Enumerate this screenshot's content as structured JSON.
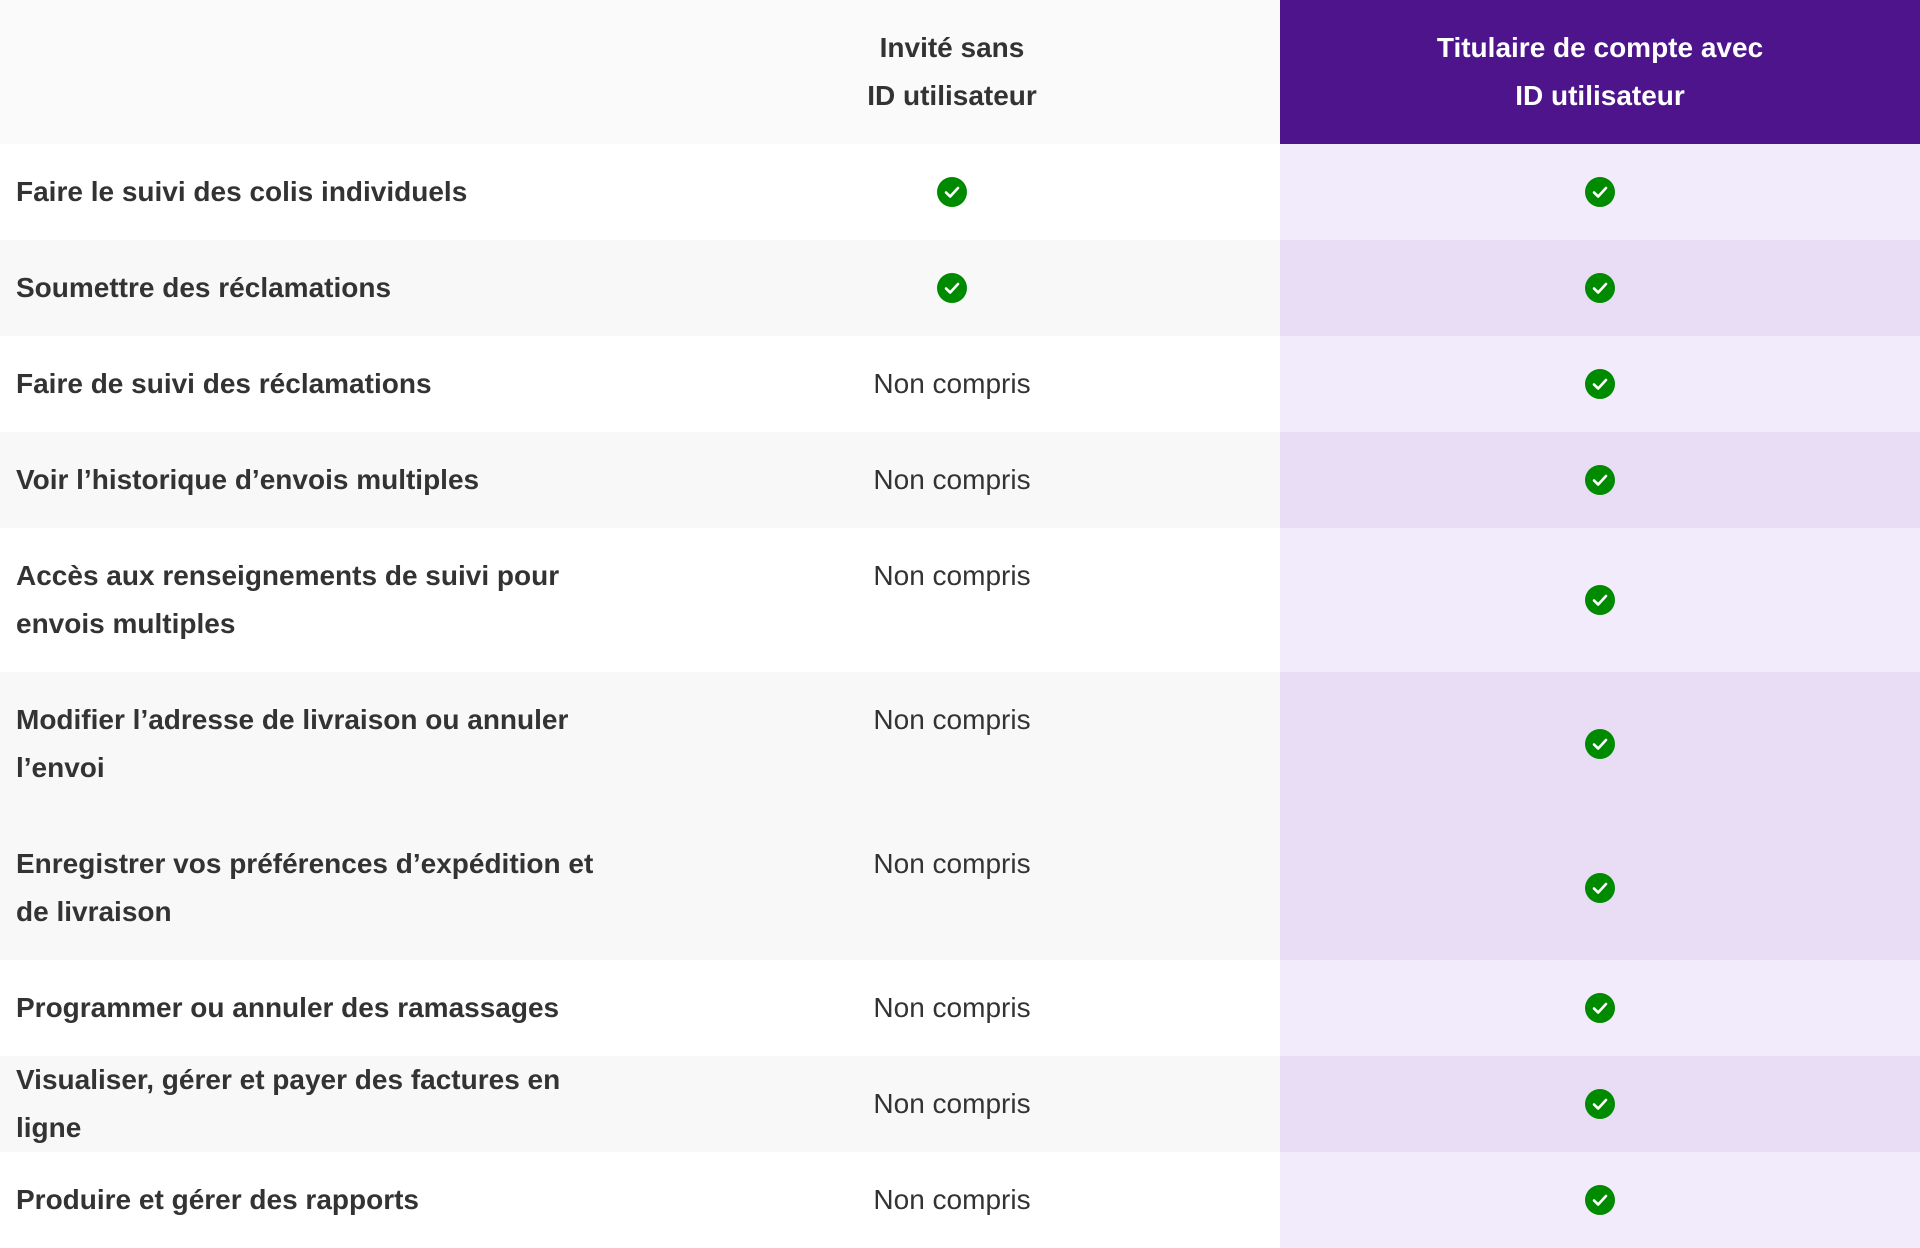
{
  "columns": {
    "feature_header": "",
    "guest": {
      "line1": "Invité sans",
      "line2": "ID utilisateur"
    },
    "account": {
      "line1": "Titulaire de compte avec",
      "line2": "ID utilisateur"
    }
  },
  "colors": {
    "account_header_bg": "#4d148c",
    "check_green": "#008a00",
    "account_col_light": "#f1ebfb",
    "account_col_dark": "#e9ddf5"
  },
  "icons": {
    "included": "check-circle-icon"
  },
  "rows": [
    {
      "feature": "Faire le suivi des colis individuels",
      "guest": "check",
      "account": "check"
    },
    {
      "feature": "Soumettre des réclamations",
      "guest": "check",
      "account": "check"
    },
    {
      "feature": "Faire de suivi des réclamations",
      "guest": "Non compris",
      "account": "check"
    },
    {
      "feature": "Voir l’historique d’envois multiples",
      "guest": "Non compris",
      "account": "check"
    },
    {
      "feature_line1": "Accès aux renseignements de suivi pour",
      "feature_line2": "envois multiples",
      "guest": "Non compris",
      "account": "check"
    },
    {
      "feature_line1": "Modifier l’adresse de livraison ou annuler",
      "feature_line2": "l’envoi",
      "guest": "Non compris",
      "account": "check"
    },
    {
      "feature_line1": "Enregistrer vos préférences d’expédition et",
      "feature_line2": "de livraison",
      "guest": "Non compris",
      "account": "check"
    },
    {
      "feature": "Programmer ou annuler des ramassages",
      "guest": "Non compris",
      "account": "check"
    },
    {
      "feature": "Visualiser, gérer et payer des factures en ligne",
      "guest": "Non compris",
      "account": "check"
    },
    {
      "feature": "Produire et gérer des rapports",
      "guest": "Non compris",
      "account": "check"
    }
  ]
}
